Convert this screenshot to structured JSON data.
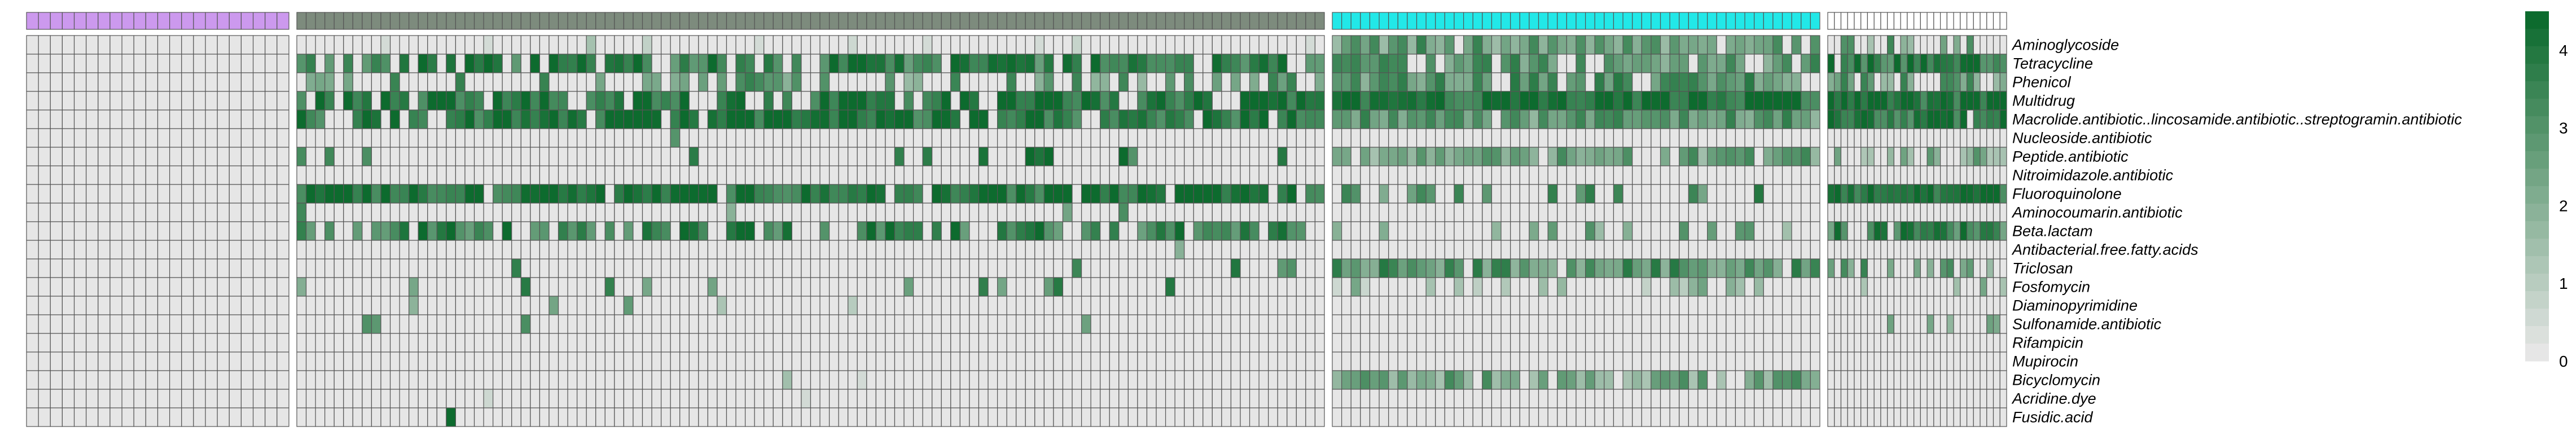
{
  "chart_data": {
    "type": "heatmap",
    "rows": [
      "Aminoglycoside",
      "Tetracycline",
      "Phenicol",
      "Multidrug",
      "Macrolide.antibiotic..lincosamide.antibiotic..streptogramin.antibiotic",
      "Nucleoside.antibiotic",
      "Peptide.antibiotic",
      "Nitroimidazole.antibiotic",
      "Fluoroquinolone",
      "Aminocoumarin.antibiotic",
      "Beta.lactam",
      "Antibacterial.free.fatty.acids",
      "Triclosan",
      "Fosfomycin",
      "Diaminopyrimidine",
      "Sulfonamide.antibiotic",
      "Rifampicin",
      "Mupirocin",
      "Bicyclomycin",
      "Acridine.dye",
      "Fusidic.acid"
    ],
    "groups": [
      {
        "n_cols": 22,
        "annotation_color": "#cc99ee",
        "typical_levels": [
          0,
          0,
          0,
          0,
          0,
          0,
          0,
          0,
          0,
          0,
          0,
          0,
          0,
          0,
          0,
          0,
          0,
          0,
          0,
          0,
          0
        ],
        "sparse_prob": [
          0,
          0,
          0,
          0,
          0,
          0,
          0,
          0,
          0,
          0.01,
          0,
          0,
          0,
          0,
          0,
          0,
          0,
          0,
          0,
          0,
          0
        ]
      },
      {
        "n_cols": 110,
        "annotation_color": "#7d8b7d",
        "typical_levels": [
          0.3,
          3.6,
          2.6,
          4.2,
          4.1,
          0,
          3.8,
          0,
          4.2,
          0,
          3.6,
          0,
          3.2,
          3.0,
          1.8,
          2.2,
          0,
          0,
          1.2,
          1.0,
          4.0
        ],
        "sparse_prob": [
          0.12,
          0.78,
          0.3,
          0.85,
          0.9,
          0.01,
          0.1,
          0.0,
          0.93,
          0.02,
          0.6,
          0.02,
          0.05,
          0.05,
          0.03,
          0.03,
          0.0,
          0.0,
          0.02,
          0.01,
          0.01
        ]
      },
      {
        "n_cols": 52,
        "annotation_color": "#22e8e8",
        "typical_levels": [
          2.6,
          2.8,
          2.9,
          4.3,
          2.8,
          0,
          2.4,
          0,
          3.0,
          0,
          2.4,
          0,
          2.9,
          1.6,
          0,
          2.0,
          0,
          0,
          2.3,
          0,
          0
        ],
        "sparse_prob": [
          0.85,
          0.75,
          0.85,
          1.0,
          0.98,
          0.0,
          0.9,
          0.0,
          0.3,
          0.03,
          0.3,
          0.0,
          0.92,
          0.35,
          0.02,
          0.04,
          0.0,
          0.0,
          0.85,
          0.0,
          0.0
        ]
      },
      {
        "n_cols": 27,
        "annotation_color": "#ffffff",
        "typical_levels": [
          2.4,
          3.8,
          2.6,
          4.3,
          4.0,
          0,
          2.0,
          0,
          4.2,
          0,
          3.4,
          0,
          2.6,
          1.8,
          0,
          1.8,
          0,
          0,
          0,
          0,
          0
        ],
        "sparse_prob": [
          0.45,
          0.95,
          0.55,
          1.0,
          0.97,
          0.0,
          0.45,
          0.0,
          1.0,
          0.0,
          0.8,
          0.0,
          0.3,
          0.15,
          0.0,
          0.15,
          0.0,
          0.0,
          0.0,
          0.0,
          0.0
        ]
      }
    ],
    "value_range": [
      0,
      4.5
    ],
    "legend": {
      "ticks": [
        0,
        1,
        2,
        3,
        4
      ],
      "placement": "right",
      "n_bins": 20
    },
    "colors": {
      "low": "#e6e6e6",
      "high": "#0d6b2e",
      "cell_border": "#555555"
    }
  }
}
